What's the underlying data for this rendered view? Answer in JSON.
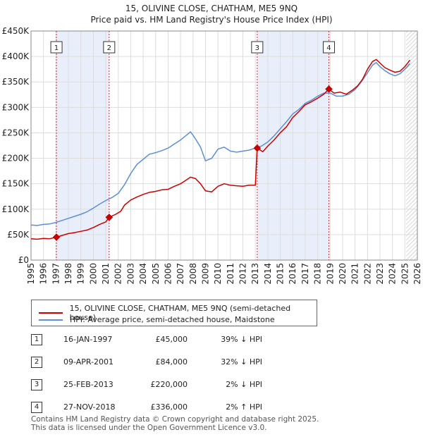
{
  "chart_data": {
    "type": "line",
    "title": "15, OLIVINE CLOSE, CHATHAM, ME5 9NQ",
    "subtitle": "Price paid vs. HM Land Registry's House Price Index (HPI)",
    "xlabel": "",
    "ylabel": "",
    "xlim": [
      1995,
      2026
    ],
    "ylim": [
      0,
      450000
    ],
    "x_ticks": [
      "1995",
      "1996",
      "1997",
      "1998",
      "1999",
      "2000",
      "2001",
      "2002",
      "2003",
      "2004",
      "2005",
      "2006",
      "2007",
      "2008",
      "2009",
      "2010",
      "2011",
      "2012",
      "2013",
      "2014",
      "2015",
      "2016",
      "2017",
      "2018",
      "2019",
      "2020",
      "2021",
      "2022",
      "2023",
      "2024",
      "2025",
      "2026"
    ],
    "y_ticks": [
      {
        "value": 0,
        "label": "£0"
      },
      {
        "value": 50000,
        "label": "£50K"
      },
      {
        "value": 100000,
        "label": "£100K"
      },
      {
        "value": 150000,
        "label": "£150K"
      },
      {
        "value": 200000,
        "label": "£200K"
      },
      {
        "value": 250000,
        "label": "£250K"
      },
      {
        "value": 300000,
        "label": "£300K"
      },
      {
        "value": 350000,
        "label": "£350K"
      },
      {
        "value": 400000,
        "label": "£400K"
      },
      {
        "value": 450000,
        "label": "£450K"
      }
    ],
    "grid": true,
    "forecast_from": 2025.1,
    "shaded_spans": [
      [
        1997.04,
        2001.27
      ],
      [
        2013.15,
        2018.9
      ]
    ],
    "series": [
      {
        "name": "15, OLIVINE CLOSE, CHATHAM, ME5 9NQ (semi-detached house)",
        "color": "#cc0000",
        "points": [
          [
            1995.0,
            42000
          ],
          [
            1995.5,
            41000
          ],
          [
            1996.0,
            42500
          ],
          [
            1996.5,
            42000
          ],
          [
            1997.04,
            45000
          ],
          [
            1997.5,
            48500
          ],
          [
            1998.0,
            52000
          ],
          [
            1998.5,
            54000
          ],
          [
            1999.0,
            56500
          ],
          [
            1999.5,
            59000
          ],
          [
            2000.0,
            64000
          ],
          [
            2000.5,
            70000
          ],
          [
            2001.0,
            75000
          ],
          [
            2001.27,
            84000
          ],
          [
            2001.8,
            90000
          ],
          [
            2002.2,
            96000
          ],
          [
            2002.5,
            108000
          ],
          [
            2003.0,
            118000
          ],
          [
            2003.5,
            124000
          ],
          [
            2004.0,
            129000
          ],
          [
            2004.5,
            133000
          ],
          [
            2005.0,
            135000
          ],
          [
            2005.5,
            138000
          ],
          [
            2006.0,
            139000
          ],
          [
            2006.5,
            145000
          ],
          [
            2007.0,
            150000
          ],
          [
            2007.5,
            158000
          ],
          [
            2007.8,
            163000
          ],
          [
            2008.2,
            160000
          ],
          [
            2008.6,
            150000
          ],
          [
            2009.0,
            136000
          ],
          [
            2009.5,
            134000
          ],
          [
            2010.0,
            145000
          ],
          [
            2010.5,
            150000
          ],
          [
            2011.0,
            147000
          ],
          [
            2011.5,
            146000
          ],
          [
            2012.0,
            145000
          ],
          [
            2012.5,
            147000
          ],
          [
            2013.0,
            147000
          ],
          [
            2013.15,
            220000
          ],
          [
            2013.6,
            213000
          ],
          [
            2014.0,
            224000
          ],
          [
            2014.5,
            236000
          ],
          [
            2015.0,
            250000
          ],
          [
            2015.5,
            262000
          ],
          [
            2016.0,
            280000
          ],
          [
            2016.5,
            292000
          ],
          [
            2017.0,
            305000
          ],
          [
            2017.5,
            311000
          ],
          [
            2018.0,
            318000
          ],
          [
            2018.5,
            326000
          ],
          [
            2018.9,
            336000
          ],
          [
            2019.3,
            328000
          ],
          [
            2019.8,
            330000
          ],
          [
            2020.3,
            326000
          ],
          [
            2020.8,
            334000
          ],
          [
            2021.2,
            342000
          ],
          [
            2021.6,
            355000
          ],
          [
            2022.0,
            375000
          ],
          [
            2022.4,
            390000
          ],
          [
            2022.7,
            394000
          ],
          [
            2023.0,
            387000
          ],
          [
            2023.4,
            378000
          ],
          [
            2023.8,
            373000
          ],
          [
            2024.2,
            369000
          ],
          [
            2024.6,
            371000
          ],
          [
            2025.0,
            380000
          ],
          [
            2025.4,
            393000
          ]
        ]
      },
      {
        "name": "HPI: Average price, semi-detached house, Maidstone",
        "color": "#5b8fd6",
        "points": [
          [
            1995.0,
            69000
          ],
          [
            1995.5,
            68000
          ],
          [
            1996.0,
            70000
          ],
          [
            1996.5,
            71000
          ],
          [
            1997.0,
            74000
          ],
          [
            1997.5,
            78000
          ],
          [
            1998.0,
            82000
          ],
          [
            1998.5,
            86000
          ],
          [
            1999.0,
            90000
          ],
          [
            1999.5,
            95000
          ],
          [
            2000.0,
            102000
          ],
          [
            2000.5,
            110000
          ],
          [
            2001.0,
            117000
          ],
          [
            2001.5,
            123000
          ],
          [
            2002.0,
            131000
          ],
          [
            2002.5,
            148000
          ],
          [
            2003.0,
            170000
          ],
          [
            2003.5,
            188000
          ],
          [
            2004.0,
            198000
          ],
          [
            2004.5,
            208000
          ],
          [
            2005.0,
            211000
          ],
          [
            2005.5,
            215000
          ],
          [
            2006.0,
            220000
          ],
          [
            2006.5,
            228000
          ],
          [
            2007.0,
            236000
          ],
          [
            2007.5,
            246000
          ],
          [
            2007.8,
            252000
          ],
          [
            2008.2,
            238000
          ],
          [
            2008.6,
            222000
          ],
          [
            2009.0,
            195000
          ],
          [
            2009.5,
            200000
          ],
          [
            2010.0,
            218000
          ],
          [
            2010.5,
            222000
          ],
          [
            2011.0,
            214000
          ],
          [
            2011.5,
            212000
          ],
          [
            2012.0,
            214000
          ],
          [
            2012.5,
            216000
          ],
          [
            2013.0,
            220000
          ],
          [
            2013.5,
            224000
          ],
          [
            2014.0,
            232000
          ],
          [
            2014.5,
            244000
          ],
          [
            2015.0,
            258000
          ],
          [
            2015.5,
            272000
          ],
          [
            2016.0,
            287000
          ],
          [
            2016.5,
            296000
          ],
          [
            2017.0,
            308000
          ],
          [
            2017.5,
            314000
          ],
          [
            2018.0,
            322000
          ],
          [
            2018.5,
            328000
          ],
          [
            2019.0,
            328000
          ],
          [
            2019.5,
            322000
          ],
          [
            2020.0,
            322000
          ],
          [
            2020.5,
            326000
          ],
          [
            2021.0,
            335000
          ],
          [
            2021.5,
            350000
          ],
          [
            2022.0,
            368000
          ],
          [
            2022.4,
            383000
          ],
          [
            2022.7,
            388000
          ],
          [
            2023.0,
            380000
          ],
          [
            2023.4,
            372000
          ],
          [
            2023.8,
            366000
          ],
          [
            2024.2,
            362000
          ],
          [
            2024.6,
            366000
          ],
          [
            2025.0,
            375000
          ],
          [
            2025.4,
            386000
          ]
        ]
      }
    ],
    "sale_markers": [
      {
        "label": "1",
        "x": 1997.04,
        "y": 45000
      },
      {
        "label": "2",
        "x": 2001.27,
        "y": 84000
      },
      {
        "label": "3",
        "x": 2013.15,
        "y": 220000
      },
      {
        "label": "4",
        "x": 2018.9,
        "y": 336000
      }
    ]
  },
  "legend": {
    "property_label": "15, OLIVINE CLOSE, CHATHAM, ME5 9NQ (semi-detached house)",
    "hpi_label": "HPI: Average price, semi-detached house, Maidstone"
  },
  "transactions": [
    {
      "num": "1",
      "date": "16-JAN-1997",
      "price": "£45,000",
      "hpi": "39% ↓ HPI"
    },
    {
      "num": "2",
      "date": "09-APR-2001",
      "price": "£84,000",
      "hpi": "32% ↓ HPI"
    },
    {
      "num": "3",
      "date": "25-FEB-2013",
      "price": "£220,000",
      "hpi": "2% ↓ HPI"
    },
    {
      "num": "4",
      "date": "27-NOV-2018",
      "price": "£336,000",
      "hpi": "2% ↑ HPI"
    }
  ],
  "footer": {
    "line1": "Contains HM Land Registry data © Crown copyright and database right 2025.",
    "line2": "This data is licensed under the Open Government Licence v3.0."
  }
}
